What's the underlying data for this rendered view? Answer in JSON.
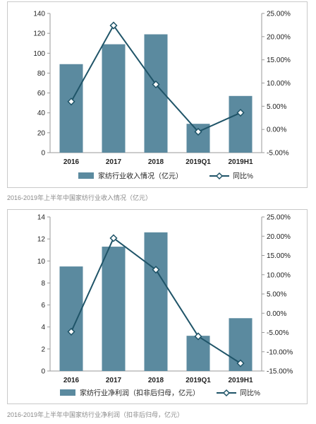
{
  "colors": {
    "bar": "#5b8a9f",
    "line": "#1f5468",
    "marker_fill": "#ffffff",
    "axis": "#9a9a9a",
    "caption": "#8a8a8a"
  },
  "chart_data": [
    {
      "type": "bar",
      "categories": [
        "2016",
        "2017",
        "2018",
        "2019Q1",
        "2019H1"
      ],
      "series": [
        {
          "name": "家纺行业收入情况（亿元）",
          "type": "bar",
          "axis": "left",
          "values": [
            89,
            109,
            119,
            29,
            57
          ]
        },
        {
          "name": "同比%",
          "type": "line",
          "axis": "right",
          "values": [
            6.0,
            22.4,
            9.7,
            -0.5,
            3.6
          ]
        }
      ],
      "ylim_left": [
        0,
        140
      ],
      "yticks_left": [
        "0",
        "20",
        "40",
        "60",
        "80",
        "100",
        "120",
        "140"
      ],
      "ylim_right": [
        -5,
        25
      ],
      "yticks_right": [
        "-5.00%",
        "0.00%",
        "5.00%",
        "10.00%",
        "15.00%",
        "20.00%",
        "25.00%"
      ],
      "legend_position": "bottom",
      "grid": false
    },
    {
      "type": "bar",
      "categories": [
        "2016",
        "2017",
        "2018",
        "2019Q1",
        "2019H1"
      ],
      "series": [
        {
          "name": "家纺行业净利润（扣非后归母，亿元）",
          "type": "bar",
          "axis": "left",
          "values": [
            9.5,
            11.3,
            12.6,
            3.2,
            4.8
          ]
        },
        {
          "name": "同比%",
          "type": "line",
          "axis": "right",
          "values": [
            -4.8,
            19.5,
            11.3,
            -6.0,
            -13.0
          ]
        }
      ],
      "ylim_left": [
        0,
        14
      ],
      "yticks_left": [
        "0",
        "2",
        "4",
        "6",
        "8",
        "10",
        "12",
        "14"
      ],
      "ylim_right": [
        -15,
        25
      ],
      "yticks_right": [
        "-15.00%",
        "-10.00%",
        "-5.00%",
        "0.00%",
        "5.00%",
        "10.00%",
        "15.00%",
        "20.00%",
        "25.00%"
      ],
      "legend_position": "bottom",
      "grid": false
    }
  ],
  "captions": [
    "2016-2019年上半年中国家纺行业收入情况（亿元）",
    "2016-2019年上半年中国家纺行业净利润（扣非后归母，亿元）"
  ]
}
